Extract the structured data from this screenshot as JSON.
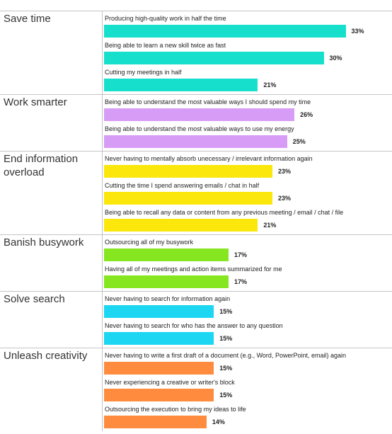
{
  "chart_data": {
    "type": "bar",
    "groups": [
      {
        "name": "Save time",
        "color": "#16e0cc",
        "categories": [
          "Producing high-quality work in half the time",
          "Being able to learn a new skill twice as fast",
          "Cutting my meetings in half"
        ],
        "values": [
          33,
          30,
          21
        ],
        "value_labels": [
          "33%",
          "30%",
          "21%"
        ]
      },
      {
        "name": "Work smarter",
        "color": "#d79cf6",
        "categories": [
          "Being able to understand the most valuable ways I should spend my time",
          "Being able to understand the most valuable ways to use my energy"
        ],
        "values": [
          26,
          25
        ],
        "value_labels": [
          "26%",
          "25%"
        ]
      },
      {
        "name": "End information overload",
        "color": "#fbe70c",
        "categories": [
          "Never having to mentally absorb unecessary / irrelevant information again",
          "Cutting the time I spend answering emails / chat in half",
          "Being able to recall any data or content from any previous meeting / email / chat / file"
        ],
        "values": [
          23,
          23,
          21
        ],
        "value_labels": [
          "23%",
          "23%",
          "21%"
        ]
      },
      {
        "name": "Banish busywork",
        "color": "#86e620",
        "categories": [
          "Outsourcing all of my busywork",
          "Having all of my meetings and action items summarized for me"
        ],
        "values": [
          17,
          17
        ],
        "value_labels": [
          "17%",
          "17%"
        ]
      },
      {
        "name": "Solve search",
        "color": "#1cd6f2",
        "categories": [
          "Never having to search for information again",
          "Never having to search for who has the answer to any question"
        ],
        "values": [
          15,
          15
        ],
        "value_labels": [
          "15%",
          "15%"
        ]
      },
      {
        "name": "Unleash creativity",
        "color": "#ff8c3e",
        "categories": [
          "Never having to write a first draft of a document (e.g., Word, PowerPoint, email) again",
          "Never experiencing a creative or writer's block",
          "Outsourcing the execution to bring my ideas to life"
        ],
        "values": [
          15,
          15,
          14
        ],
        "value_labels": [
          "15%",
          "15%",
          "14%"
        ]
      }
    ]
  }
}
